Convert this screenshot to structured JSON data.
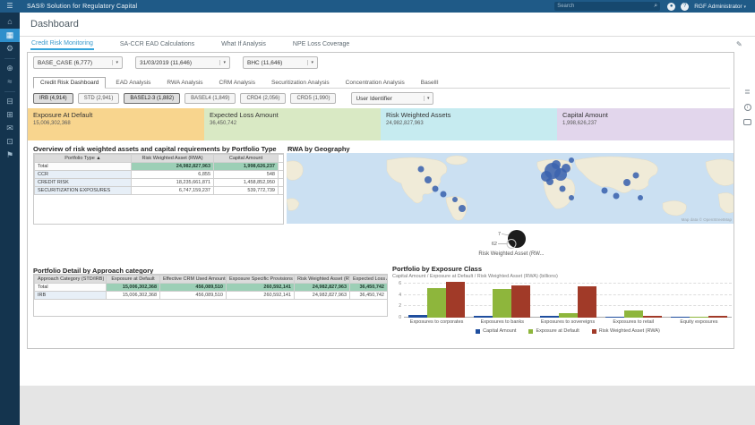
{
  "app_bar": {
    "title": "SAS® Solution for Regulatory Capital",
    "search_placeholder": "Search",
    "user_menu": "RGF Administrator"
  },
  "sidebar": {
    "items": [
      {
        "name": "home",
        "glyph": "⌂",
        "active": false
      },
      {
        "name": "dashboard",
        "glyph": "▦",
        "active": true
      },
      {
        "name": "settings",
        "glyph": "⚙",
        "active": false
      },
      {
        "name": "divider"
      },
      {
        "name": "explore",
        "glyph": "⊕",
        "active": false
      },
      {
        "name": "reports",
        "glyph": "≈",
        "active": false
      },
      {
        "name": "divider"
      },
      {
        "name": "lineage",
        "glyph": "⊟",
        "active": false
      },
      {
        "name": "library",
        "glyph": "⊞",
        "active": false
      },
      {
        "name": "messages",
        "glyph": "✉",
        "active": false
      },
      {
        "name": "projects",
        "glyph": "⊡",
        "active": false
      },
      {
        "name": "workbench",
        "glyph": "⚑",
        "active": false
      }
    ]
  },
  "header": {
    "title": "Dashboard"
  },
  "main_tabs": {
    "active": 0,
    "items": [
      "Credit Risk Monitoring",
      "SA-CCR EAD Calculations",
      "What If Analysis",
      "NPE Loss Coverage"
    ]
  },
  "selectors": [
    {
      "value": "BASE_CASE (6,777)"
    },
    {
      "value": "31/03/2019 (11,646)"
    },
    {
      "value": "BHC (11,646)"
    }
  ],
  "subtabs": {
    "active": 0,
    "items": [
      "Credit Risk Dashboard",
      "EAD Analysis",
      "RWA Analysis",
      "CRM Analysis",
      "Securitization Analysis",
      "Concentration Analysis",
      "BaselII"
    ]
  },
  "toggles": [
    {
      "label": "IRB (4,914)",
      "selected": true
    },
    {
      "label": "STD (2,941)",
      "selected": false
    },
    {
      "label": "BASEL2-3 (1,882)",
      "selected": true
    },
    {
      "label": "BASEL4 (1,849)",
      "selected": false
    },
    {
      "label": "CRD4 (2,056)",
      "selected": false
    },
    {
      "label": "CRD5 (1,990)",
      "selected": false
    }
  ],
  "user_identifier": {
    "value": "User Identifier"
  },
  "kpis": [
    {
      "label": "Exposure At Default",
      "value": "15,006,302,368",
      "color": "#F8D58E"
    },
    {
      "label": "Expected Loss Amount",
      "value": "36,450,742",
      "color": "#D9E9C4"
    },
    {
      "label": "Risk Weighted Assets",
      "value": "24,982,827,963",
      "color": "#C6EBF0"
    },
    {
      "label": "Capital Amount",
      "value": "1,998,626,237",
      "color": "#E2D6EC"
    }
  ],
  "overview_table": {
    "title": "Overview of risk weighted assets and capital requirements by Portfolio Type",
    "columns": [
      "Portfolio Type",
      "Risk Weighted Asset (RWA)",
      "Capital Amount"
    ],
    "sort_column": 0,
    "rows": [
      {
        "cells": [
          "Total",
          "24,982,827,963",
          "1,998,626,237"
        ],
        "total": true
      },
      {
        "cells": [
          "CCR",
          "6,855",
          "548"
        ],
        "total": false
      },
      {
        "cells": [
          "CREDIT RISK",
          "18,235,661,871",
          "1,458,852,950"
        ],
        "total": false
      },
      {
        "cells": [
          "SECURITIZATION EXPOSURES",
          "6,747,159,237",
          "539,772,739"
        ],
        "total": false
      }
    ]
  },
  "geo": {
    "title": "RWA by Geography",
    "bubble_color": "#3B63AE",
    "bubbles": [
      [
        297,
        20,
        9
      ],
      [
        306,
        24,
        7
      ],
      [
        290,
        26,
        6
      ],
      [
        301,
        13,
        5
      ],
      [
        312,
        17,
        5
      ],
      [
        294,
        32,
        4
      ],
      [
        318,
        8,
        3
      ],
      [
        150,
        18,
        3.5
      ],
      [
        158,
        30,
        4
      ],
      [
        166,
        40,
        3.5
      ],
      [
        175,
        46,
        3.5
      ],
      [
        188,
        52,
        3
      ],
      [
        196,
        62,
        4
      ],
      [
        308,
        40,
        3.5
      ],
      [
        318,
        50,
        3
      ],
      [
        355,
        42,
        3.5
      ],
      [
        368,
        48,
        3.5
      ],
      [
        380,
        33,
        4
      ],
      [
        390,
        25,
        3.5
      ],
      [
        395,
        50,
        3
      ]
    ],
    "bubble_legend": {
      "outer_label": "7",
      "inner_label": "62",
      "caption": "Risk Weighted Asset (RW..."
    },
    "attribution": "Map data © OpenStreetMap"
  },
  "detail_table": {
    "title": "Portfolio Detail by Approach category",
    "columns": [
      "Approach Category (STD/IRB)",
      "Exposure at Default",
      "Effective CRM Used Amount",
      "Exposure Specific Provisions",
      "Risk Weighted Asset (RWA)",
      "Expected Loss Amount"
    ],
    "sort_column": 0,
    "rows": [
      {
        "cells": [
          "Total",
          "15,006,302,368",
          "456,089,510",
          "260,592,141",
          "24,982,827,963",
          "36,450,742"
        ],
        "total": true
      },
      {
        "cells": [
          "IRB",
          "15,006,302,368",
          "456,089,510",
          "260,592,141",
          "24,982,827,963",
          "36,450,742"
        ],
        "total": false
      }
    ]
  },
  "chart_data": {
    "type": "bar",
    "title": "Portfolio by Exposure Class",
    "subtitle": "Capital Amount / Exposure at Default / Risk Weighted Asset (RWA) (billions)",
    "categories": [
      "Exposures to corporates",
      "Exposures to banks",
      "Exposures to sovereigns",
      "Exposures to retail",
      "Equity exposures"
    ],
    "series": [
      {
        "name": "Capital Amount",
        "color": "#1F4E9E",
        "values": [
          0.4,
          0.3,
          0.3,
          0.06,
          0.02
        ]
      },
      {
        "name": "Exposure at Default",
        "color": "#8EB63C",
        "values": [
          5.2,
          5.1,
          0.85,
          1.2,
          0.05
        ]
      },
      {
        "name": "Risk Weighted Asset (RWA)",
        "color": "#A13A28",
        "values": [
          6.3,
          5.6,
          5.5,
          0.3,
          0.25
        ]
      }
    ],
    "ylim": [
      0,
      6.6
    ],
    "yticks": [
      0,
      2,
      4,
      6
    ],
    "grid": true,
    "legend_position": "bottom"
  }
}
